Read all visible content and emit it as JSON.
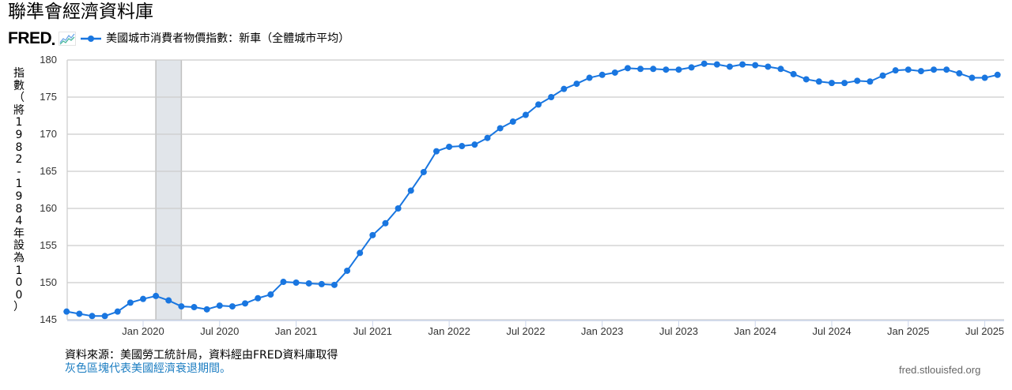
{
  "header": {
    "title": "聯準會經濟資料庫",
    "logo_text": "FRED",
    "series_label": "美國城市消費者物價指數：新車（全體城市平均）"
  },
  "footer": {
    "source": "資料來源：美國勞工統計局，資料經由FRED資料庫取得",
    "recession_note": "灰色區塊代表美國經濟衰退期間。",
    "site": "fred.stlouisfed.org"
  },
  "colors": {
    "series": "#1976e0",
    "recession_band": "#e1e5ea",
    "gridline": "#cccccc",
    "axis": "#ccd6eb",
    "source_link": "#1a7cc1"
  },
  "chart_data": {
    "type": "line",
    "title": "美國城市消費者物價指數：新車（全體城市平均）",
    "xlabel": "",
    "ylabel": "指數（將1982-1984年設為100）",
    "ylim": [
      145,
      180
    ],
    "yticks": [
      145,
      150,
      155,
      160,
      165,
      170,
      175,
      180
    ],
    "xtick_labels": [
      "Jan 2020",
      "Jul 2020",
      "Jan 2021",
      "Jul 2021",
      "Jan 2022",
      "Jul 2022",
      "Jan 2023",
      "Jul 2023",
      "Jan 2024",
      "Jul 2024",
      "Jan 2025",
      "Jul 2025"
    ],
    "grid": true,
    "legend_position": "top-left",
    "recessions": [
      {
        "start": "2020-02",
        "end": "2020-04"
      }
    ],
    "x": [
      "2019-07",
      "2019-08",
      "2019-09",
      "2019-10",
      "2019-11",
      "2019-12",
      "2020-01",
      "2020-02",
      "2020-03",
      "2020-04",
      "2020-05",
      "2020-06",
      "2020-07",
      "2020-08",
      "2020-09",
      "2020-10",
      "2020-11",
      "2020-12",
      "2021-01",
      "2021-02",
      "2021-03",
      "2021-04",
      "2021-05",
      "2021-06",
      "2021-07",
      "2021-08",
      "2021-09",
      "2021-10",
      "2021-11",
      "2021-12",
      "2022-01",
      "2022-02",
      "2022-03",
      "2022-04",
      "2022-05",
      "2022-06",
      "2022-07",
      "2022-08",
      "2022-09",
      "2022-10",
      "2022-11",
      "2022-12",
      "2023-01",
      "2023-02",
      "2023-03",
      "2023-04",
      "2023-05",
      "2023-06",
      "2023-07",
      "2023-08",
      "2023-09",
      "2023-10",
      "2023-11",
      "2023-12",
      "2024-01",
      "2024-02",
      "2024-03",
      "2024-04",
      "2024-05",
      "2024-06",
      "2024-07",
      "2024-08",
      "2024-09",
      "2024-10",
      "2024-11",
      "2024-12",
      "2025-01",
      "2025-02",
      "2025-03",
      "2025-04",
      "2025-05",
      "2025-06",
      "2025-07",
      "2025-08"
    ],
    "series": [
      {
        "name": "美國城市消費者物價指數：新車（全體城市平均）",
        "values": [
          146.1,
          145.8,
          145.5,
          145.5,
          146.1,
          147.3,
          147.8,
          148.2,
          147.6,
          146.8,
          146.7,
          146.4,
          146.9,
          146.8,
          147.2,
          147.9,
          148.4,
          150.1,
          150.0,
          149.9,
          149.8,
          149.7,
          151.6,
          154.0,
          156.4,
          158.0,
          160.0,
          162.4,
          164.9,
          167.7,
          168.3,
          168.4,
          168.6,
          169.5,
          170.8,
          171.7,
          172.6,
          174.0,
          175.0,
          176.1,
          176.8,
          177.6,
          178.0,
          178.3,
          178.9,
          178.8,
          178.8,
          178.7,
          178.7,
          179.0,
          179.5,
          179.4,
          179.1,
          179.4,
          179.3,
          179.1,
          178.8,
          178.1,
          177.4,
          177.1,
          176.9,
          176.9,
          177.2,
          177.1,
          177.9,
          178.6,
          178.7,
          178.5,
          178.7,
          178.7,
          178.2,
          177.6,
          177.6,
          178.0
        ]
      }
    ]
  }
}
